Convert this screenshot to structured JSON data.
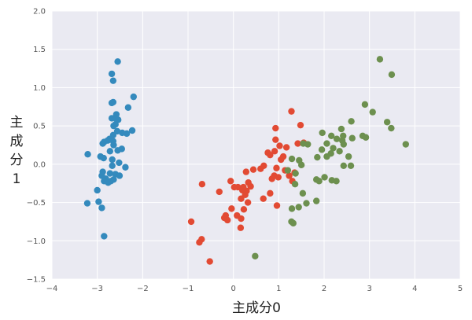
{
  "chart_data": {
    "type": "scatter",
    "title": "",
    "xlabel": "主成分0",
    "ylabel_lines": [
      "主",
      "成",
      "分",
      "1"
    ],
    "xlim": [
      -4,
      5
    ],
    "ylim": [
      -1.5,
      2.0
    ],
    "xticks": [
      -4,
      -3,
      -2,
      -1,
      0,
      1,
      2,
      3,
      4,
      5
    ],
    "xtick_labels": [
      "−4",
      "−3",
      "−2",
      "−1",
      "0",
      "1",
      "2",
      "3",
      "4",
      "5"
    ],
    "yticks": [
      -1.5,
      -1.0,
      -0.5,
      0.0,
      0.5,
      1.0,
      1.5,
      2.0
    ],
    "ytick_labels": [
      "−1.5",
      "−1.0",
      "−0.5",
      "0.0",
      "0.5",
      "1.0",
      "1.5",
      "2.0"
    ],
    "grid": true,
    "background": "#eaeaf2",
    "series": [
      {
        "color": "#348abd",
        "points": [
          [
            -2.55,
            1.34
          ],
          [
            -2.68,
            1.18
          ],
          [
            -2.65,
            1.09
          ],
          [
            -2.2,
            0.88
          ],
          [
            -2.65,
            0.81
          ],
          [
            -2.68,
            0.8
          ],
          [
            -2.32,
            0.74
          ],
          [
            -2.58,
            0.65
          ],
          [
            -2.6,
            0.6
          ],
          [
            -2.68,
            0.6
          ],
          [
            -2.54,
            0.58
          ],
          [
            -2.6,
            0.52
          ],
          [
            -2.64,
            0.5
          ],
          [
            -2.23,
            0.44
          ],
          [
            -2.56,
            0.43
          ],
          [
            -2.45,
            0.41
          ],
          [
            -2.35,
            0.4
          ],
          [
            -2.65,
            0.38
          ],
          [
            -2.73,
            0.33
          ],
          [
            -2.77,
            0.31
          ],
          [
            -2.65,
            0.3
          ],
          [
            -2.85,
            0.29
          ],
          [
            -2.88,
            0.27
          ],
          [
            -2.64,
            0.25
          ],
          [
            -2.46,
            0.2
          ],
          [
            -2.55,
            0.18
          ],
          [
            -2.72,
            0.17
          ],
          [
            -3.21,
            0.13
          ],
          [
            -2.93,
            0.1
          ],
          [
            -2.86,
            0.08
          ],
          [
            -2.67,
            0.06
          ],
          [
            -2.52,
            0.02
          ],
          [
            -2.67,
            -0.02
          ],
          [
            -2.38,
            -0.04
          ],
          [
            -2.88,
            -0.1
          ],
          [
            -2.72,
            -0.12
          ],
          [
            -2.6,
            -0.13
          ],
          [
            -2.51,
            -0.15
          ],
          [
            -2.9,
            -0.15
          ],
          [
            -2.81,
            -0.19
          ],
          [
            -2.64,
            -0.2
          ],
          [
            -2.7,
            -0.22
          ],
          [
            -2.85,
            -0.22
          ],
          [
            -2.76,
            -0.24
          ],
          [
            -3.0,
            -0.34
          ],
          [
            -2.97,
            -0.49
          ],
          [
            -3.22,
            -0.51
          ],
          [
            -2.9,
            -0.57
          ],
          [
            -2.85,
            -0.94
          ]
        ]
      },
      {
        "color": "#e24a33",
        "points": [
          [
            1.28,
            0.69
          ],
          [
            1.48,
            0.51
          ],
          [
            0.93,
            0.47
          ],
          [
            1.55,
            0.28
          ],
          [
            1.42,
            0.27
          ],
          [
            0.93,
            0.32
          ],
          [
            1.02,
            0.24
          ],
          [
            1.17,
            0.22
          ],
          [
            0.76,
            0.15
          ],
          [
            0.91,
            0.17
          ],
          [
            0.81,
            0.12
          ],
          [
            1.1,
            0.1
          ],
          [
            1.05,
            0.06
          ],
          [
            0.95,
            -0.05
          ],
          [
            0.67,
            -0.02
          ],
          [
            0.44,
            -0.07
          ],
          [
            0.6,
            -0.06
          ],
          [
            1.14,
            -0.08
          ],
          [
            1.35,
            -0.11
          ],
          [
            0.28,
            -0.1
          ],
          [
            0.9,
            -0.15
          ],
          [
            1.23,
            -0.15
          ],
          [
            1.3,
            -0.22
          ],
          [
            0.85,
            -0.19
          ],
          [
            0.99,
            -0.17
          ],
          [
            -0.06,
            -0.22
          ],
          [
            -0.69,
            -0.26
          ],
          [
            0.33,
            -0.24
          ],
          [
            0.38,
            -0.29
          ],
          [
            0.22,
            -0.3
          ],
          [
            0.29,
            -0.35
          ],
          [
            0.1,
            -0.3
          ],
          [
            0.02,
            -0.3
          ],
          [
            0.2,
            -0.34
          ],
          [
            0.26,
            -0.4
          ],
          [
            0.17,
            -0.45
          ],
          [
            -0.31,
            -0.36
          ],
          [
            0.81,
            -0.38
          ],
          [
            0.66,
            -0.45
          ],
          [
            0.96,
            -0.54
          ],
          [
            0.32,
            -0.5
          ],
          [
            0.23,
            -0.59
          ],
          [
            -0.04,
            -0.58
          ],
          [
            0.08,
            -0.67
          ],
          [
            -0.17,
            -0.67
          ],
          [
            -0.2,
            -0.7
          ],
          [
            -0.13,
            -0.73
          ],
          [
            0.17,
            -0.71
          ],
          [
            0.16,
            -0.83
          ],
          [
            -0.93,
            -0.75
          ],
          [
            -0.7,
            -0.98
          ],
          [
            -0.75,
            -1.02
          ],
          [
            -0.52,
            -1.27
          ]
        ]
      },
      {
        "color": "#6d904f",
        "points": [
          [
            3.23,
            1.37
          ],
          [
            3.49,
            1.17
          ],
          [
            2.9,
            0.78
          ],
          [
            3.07,
            0.68
          ],
          [
            2.6,
            0.56
          ],
          [
            3.39,
            0.55
          ],
          [
            3.48,
            0.47
          ],
          [
            2.38,
            0.46
          ],
          [
            1.96,
            0.41
          ],
          [
            2.16,
            0.37
          ],
          [
            2.42,
            0.37
          ],
          [
            2.62,
            0.34
          ],
          [
            2.28,
            0.33
          ],
          [
            2.85,
            0.37
          ],
          [
            2.92,
            0.35
          ],
          [
            2.4,
            0.31
          ],
          [
            2.06,
            0.27
          ],
          [
            1.64,
            0.26
          ],
          [
            1.54,
            0.27
          ],
          [
            2.43,
            0.26
          ],
          [
            3.8,
            0.26
          ],
          [
            2.2,
            0.21
          ],
          [
            2.34,
            0.17
          ],
          [
            1.95,
            0.19
          ],
          [
            2.15,
            0.14
          ],
          [
            2.54,
            0.1
          ],
          [
            2.06,
            0.1
          ],
          [
            1.85,
            0.09
          ],
          [
            1.45,
            0.05
          ],
          [
            1.29,
            0.07
          ],
          [
            1.5,
            -0.01
          ],
          [
            2.43,
            -0.02
          ],
          [
            2.59,
            -0.02
          ],
          [
            1.2,
            -0.08
          ],
          [
            1.37,
            -0.12
          ],
          [
            2.01,
            -0.17
          ],
          [
            1.83,
            -0.2
          ],
          [
            2.17,
            -0.21
          ],
          [
            2.27,
            -0.22
          ],
          [
            1.36,
            -0.26
          ],
          [
            1.89,
            -0.22
          ],
          [
            1.53,
            -0.38
          ],
          [
            1.44,
            -0.56
          ],
          [
            1.29,
            -0.58
          ],
          [
            1.61,
            -0.51
          ],
          [
            1.83,
            -0.48
          ],
          [
            1.28,
            -0.75
          ],
          [
            1.32,
            -0.77
          ],
          [
            0.48,
            -1.2
          ]
        ]
      }
    ]
  }
}
